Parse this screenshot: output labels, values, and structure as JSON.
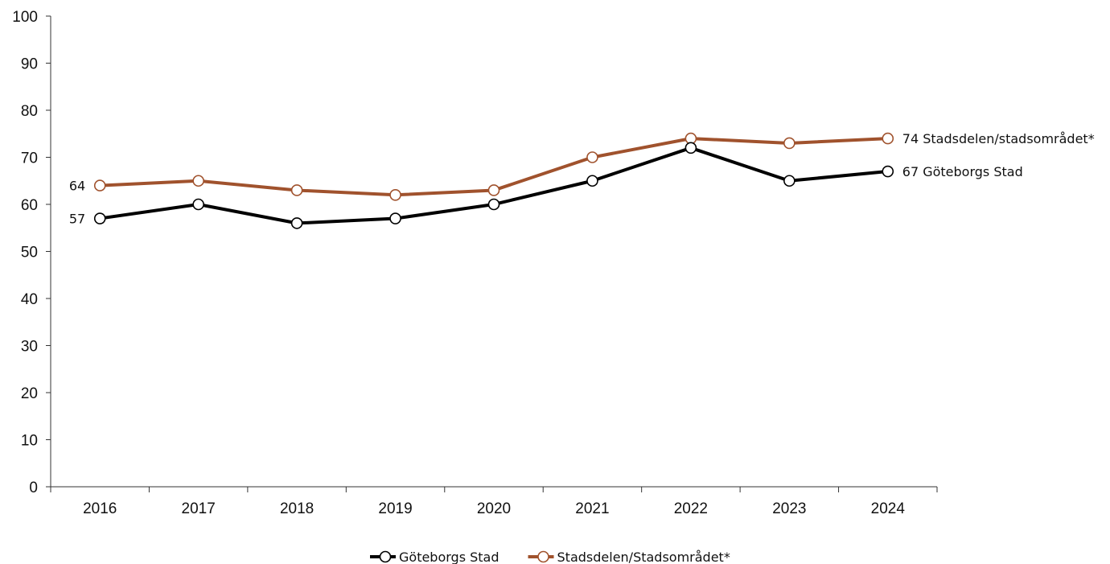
{
  "chart_data": {
    "type": "line",
    "title": "",
    "xlabel": "",
    "ylabel": "",
    "ylim": [
      0,
      100
    ],
    "yticks": [
      0,
      10,
      20,
      30,
      40,
      50,
      60,
      70,
      80,
      90,
      100
    ],
    "categories": [
      "2016",
      "2017",
      "2018",
      "2019",
      "2020",
      "2021",
      "2022",
      "2023",
      "2024"
    ],
    "grid": false,
    "legend_position": "bottom",
    "series": [
      {
        "name": "Göteborgs Stad",
        "color": "#000000",
        "values": [
          57,
          60,
          56,
          57,
          60,
          65,
          72,
          65,
          67
        ],
        "start_label": "57",
        "end_label": "67 Göteborgs Stad"
      },
      {
        "name": "Stadsdelen/Stadsområdet*",
        "color": "#A0522D",
        "values": [
          64,
          65,
          63,
          62,
          63,
          70,
          74,
          73,
          74
        ],
        "start_label": "64",
        "end_label": "74 Stadsdelen/stadsområdet*"
      }
    ]
  }
}
